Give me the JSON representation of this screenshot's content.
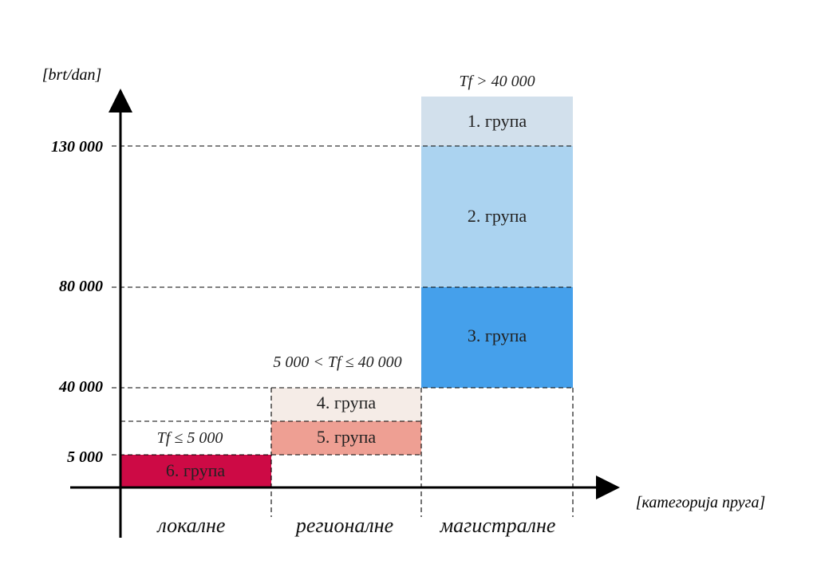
{
  "diagram": {
    "y_axis_label": "[brt/dan]",
    "x_axis_label": "[категорија пруга]",
    "y_ticks": [
      {
        "label": "130 000",
        "value": 130000
      },
      {
        "label": "80 000",
        "value": 80000
      },
      {
        "label": "40 000",
        "value": 40000
      },
      {
        "label": "5 000",
        "value": 5000
      }
    ],
    "categories": [
      {
        "label": "локалне",
        "condition": "Tf ≤ 5 000"
      },
      {
        "label": "регионалне",
        "condition": "5 000 < Tf ≤ 40 000"
      },
      {
        "label": "магистралне",
        "condition": "Tf > 40 000"
      }
    ],
    "groups": [
      {
        "label": "1. група",
        "category": "магистралне",
        "color": "#d2e0ec"
      },
      {
        "label": "2. група",
        "category": "магистралне",
        "color": "#abd3f0"
      },
      {
        "label": "3. група",
        "category": "магистралне",
        "color": "#45a0eb"
      },
      {
        "label": "4. група",
        "category": "регионалне",
        "color": "#f5ece7"
      },
      {
        "label": "5. група",
        "category": "регионалне",
        "color": "#ee9f93"
      },
      {
        "label": "6. група",
        "category": "локалне",
        "color": "#cd0a45"
      }
    ]
  }
}
